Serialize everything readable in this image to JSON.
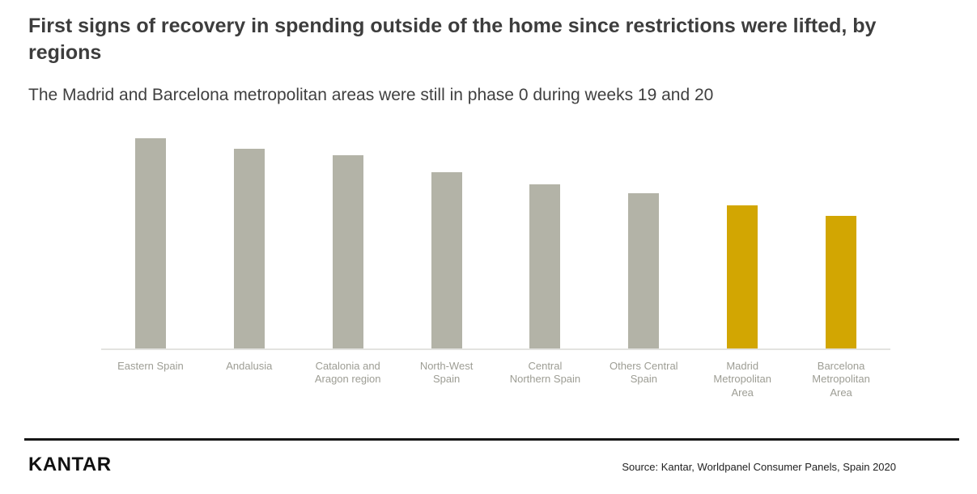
{
  "page": {
    "title": "First signs of recovery in spending outside of the home since restrictions were lifted, by regions",
    "subtitle": "The Madrid and Barcelona metropolitan areas were still in phase 0 during weeks 19 and 20"
  },
  "footer": {
    "logo": "KANTAR",
    "source": "Source: Kantar, Worldpanel Consumer Panels, Spain 2020"
  },
  "chart_data": {
    "type": "bar",
    "title": "First signs of recovery in spending outside of the home since restrictions were lifted, by regions",
    "subtitle": "The Madrid and Barcelona metropolitan areas were still in phase 0 during weeks 19 and 20",
    "categories": [
      "Eastern Spain",
      "Andalusia",
      "Catalonia and Aragon region",
      "North-West Spain",
      "Central Northern Spain",
      "Others Central Spain",
      "Madrid Metropolitan Area",
      "Barcelona Metropolitan Area"
    ],
    "values": [
      100,
      95,
      92,
      84,
      78,
      74,
      68,
      63
    ],
    "value_note": "No axis or data labels shown; values estimated as index relative to tallest bar = 100",
    "colors": [
      "#b3b3a7",
      "#b3b3a7",
      "#b3b3a7",
      "#b3b3a7",
      "#b3b3a7",
      "#b3b3a7",
      "#d2a602",
      "#d2a602"
    ],
    "default_color": "#b3b3a7",
    "highlight_color": "#d2a602",
    "highlighted_categories": [
      "Madrid Metropolitan Area",
      "Barcelona Metropolitan Area"
    ],
    "xlabel": "",
    "ylabel": "",
    "ylim": [
      0,
      100
    ],
    "grid": false,
    "legend": false,
    "value_labels": false
  }
}
